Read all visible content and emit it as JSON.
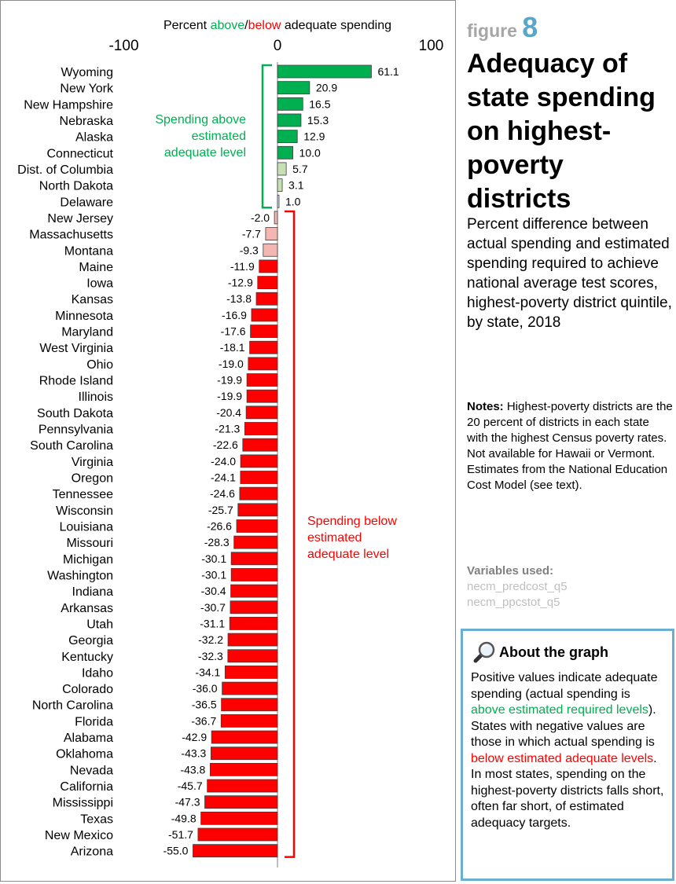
{
  "figure": {
    "label": "figure",
    "number": "8",
    "title": "Adequacy of state spending on highest-poverty districts",
    "subtitle": "Percent difference between actual spending and estimated spending required to achieve national average test scores, highest-poverty district quintile, by state, 2018"
  },
  "notes": {
    "label": "Notes:",
    "text": "Highest-poverty districts are the 20 percent of districts in each state with the highest Census poverty rates. Not available for Hawaii or Vermont. Estimates from the National Education Cost Model (see text)."
  },
  "variables": {
    "label": "Variables used:",
    "items": [
      "necm_predcost_q5",
      "necm_ppcstot_q5"
    ]
  },
  "about": {
    "heading": "About the graph",
    "p1": "Positive values indicate adequate spending (actual spending is ",
    "p1_hl": "above estimated required levels",
    "p2": "). States with negative values are those in which actual spending is ",
    "p2_hl": "below estimated adequate levels",
    "p3": ". In most states, spending on the highest-poverty districts falls short, often far short, of estimated adequacy targets."
  },
  "icons": {
    "about": "magnifying-glass-icon"
  },
  "colors": {
    "dark_green": "#00b050",
    "light_green": "#c6e0b4",
    "light_blue": "#dae3f3",
    "light_red": "#f4b6b0",
    "red": "#ff0000",
    "accent": "#5aa6c6"
  },
  "chart_data": {
    "type": "bar",
    "orientation": "horizontal",
    "title": "",
    "axis_label": {
      "prefix": "Percent ",
      "above": "above",
      "sep": "/",
      "below": "below",
      "suffix": " adequate spending"
    },
    "xlim": [
      -100,
      100
    ],
    "ticks": [
      "-100",
      "0",
      "100"
    ],
    "annotations": {
      "above": [
        "Spending above",
        "estimated",
        "adequate level"
      ],
      "below": [
        "Spending below",
        "estimated",
        "adequate level"
      ]
    },
    "categories": [
      "Wyoming",
      "New York",
      "New Hampshire",
      "Nebraska",
      "Alaska",
      "Connecticut",
      "Dist. of Columbia",
      "North Dakota",
      "Delaware",
      "New Jersey",
      "Massachusetts",
      "Montana",
      "Maine",
      "Iowa",
      "Kansas",
      "Minnesota",
      "Maryland",
      "West Virginia",
      "Ohio",
      "Rhode Island",
      "Illinois",
      "South Dakota",
      "Pennsylvania",
      "South Carolina",
      "Virginia",
      "Oregon",
      "Tennessee",
      "Wisconsin",
      "Louisiana",
      "Missouri",
      "Michigan",
      "Washington",
      "Indiana",
      "Arkansas",
      "Utah",
      "Georgia",
      "Kentucky",
      "Idaho",
      "Colorado",
      "North Carolina",
      "Florida",
      "Alabama",
      "Oklahoma",
      "Nevada",
      "California",
      "Mississippi",
      "Texas",
      "New Mexico",
      "Arizona"
    ],
    "values": [
      61.1,
      20.9,
      16.5,
      15.3,
      12.9,
      10.0,
      5.7,
      3.1,
      1.0,
      -2.0,
      -7.7,
      -9.3,
      -11.9,
      -12.9,
      -13.8,
      -16.9,
      -17.6,
      -18.1,
      -19.0,
      -19.9,
      -19.9,
      -20.4,
      -21.3,
      -22.6,
      -24.0,
      -24.1,
      -24.6,
      -25.7,
      -26.6,
      -28.3,
      -30.1,
      -30.1,
      -30.4,
      -30.7,
      -31.1,
      -32.2,
      -32.3,
      -34.1,
      -36.0,
      -36.5,
      -36.7,
      -42.9,
      -43.3,
      -43.8,
      -45.7,
      -47.3,
      -49.8,
      -51.7,
      -55.0
    ],
    "labels": [
      "61.1",
      "20.9",
      "16.5",
      "15.3",
      "12.9",
      "10.0",
      "5.7",
      "3.1",
      "1.0",
      "-2.0",
      "-7.7",
      "-9.3",
      "-11.9",
      "-12.9",
      "-13.8",
      "-16.9",
      "-17.6",
      "-18.1",
      "-19.0",
      "-19.9",
      "-19.9",
      "-20.4",
      "-21.3",
      "-22.6",
      "-24.0",
      "-24.1",
      "-24.6",
      "-25.7",
      "-26.6",
      "-28.3",
      "-30.1",
      "-30.1",
      "-30.4",
      "-30.7",
      "-31.1",
      "-32.2",
      "-32.3",
      "-34.1",
      "-36.0",
      "-36.5",
      "-36.7",
      "-42.9",
      "-43.3",
      "-43.8",
      "-45.7",
      "-47.3",
      "-49.8",
      "-51.7",
      "-55.0"
    ],
    "grid": false,
    "legend": "none"
  }
}
